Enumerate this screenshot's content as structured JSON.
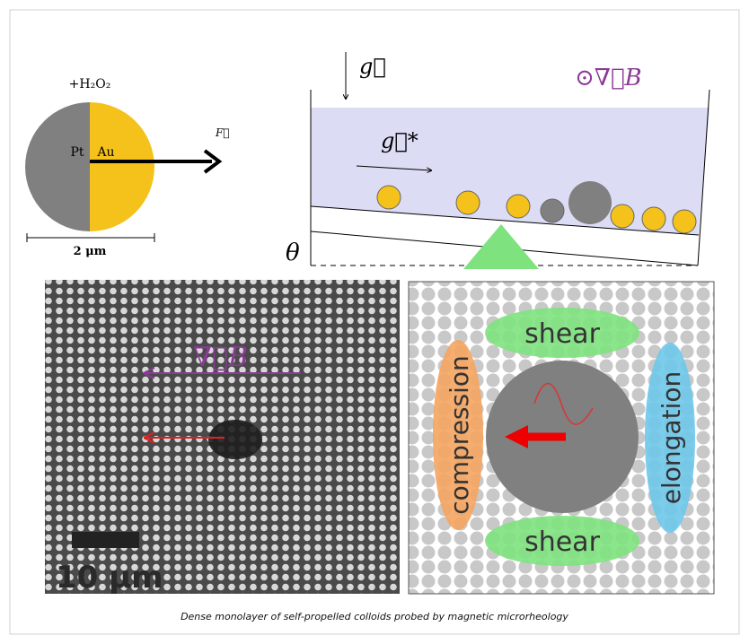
{
  "figure": {
    "janus": {
      "reagent": "+H₂O₂",
      "left_label": "Pt",
      "right_label": "Au",
      "force": "F⃗",
      "scale": "2 μm"
    },
    "setup": {
      "gravity": "g⃗",
      "effective_gravity": "g⃗*",
      "field": "⊙∇⃗B",
      "angle": "θ"
    },
    "micrograph": {
      "field": "∇⃗B",
      "scale": "10 μm"
    },
    "schematic": {
      "top": "shear",
      "bottom": "shear",
      "left": "compression",
      "right": "elongation"
    }
  },
  "caption": "Dense monolayer of self-propelled colloids probed by magnetic microrheology"
}
